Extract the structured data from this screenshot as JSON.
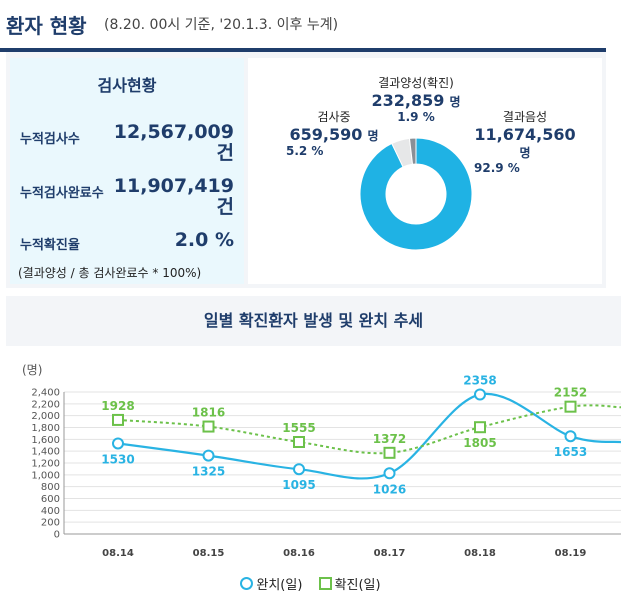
{
  "header": {
    "title": "환자 현황",
    "subtitle": "(8.20. 00시 기준, '20.1.3. 이후 누계)"
  },
  "stats": {
    "title": "검사현황",
    "rows": [
      {
        "label": "누적검사수",
        "value": "12,567,009 건"
      },
      {
        "label": "누적검사완료수",
        "value": "11,907,419 건"
      },
      {
        "label": "누적확진율",
        "value": "2.0 %"
      }
    ],
    "note": "(결과양성 / 총 검사완료수 * 100%)"
  },
  "pie": {
    "positive": {
      "name": "결과양성(확진)",
      "value": "232,859",
      "unit": "명",
      "pct": "1.9 %"
    },
    "testing": {
      "name": "검사중",
      "value": "659,590",
      "unit": "명",
      "pct": "5.2 %"
    },
    "negative": {
      "name": "결과음성",
      "value": "11,674,560",
      "unit": "명",
      "pct": "92.9 %"
    },
    "colors": {
      "negative": "#1fb2e4",
      "testing": "#e6e7e8",
      "positive": "#8a8f96"
    }
  },
  "chart_data": {
    "type": "line",
    "title": "일별 확진환자 발생 및 완치 추세",
    "ylabel": "(명)",
    "ylim": [
      0,
      2400
    ],
    "yticks": [
      0,
      200,
      400,
      600,
      800,
      1000,
      1200,
      1400,
      1600,
      1800,
      2000,
      2200,
      2400
    ],
    "categories": [
      "08.14",
      "08.15",
      "08.16",
      "08.17",
      "08.18",
      "08.19"
    ],
    "series": [
      {
        "name": "완치(일)",
        "color": "#29b3e3",
        "values": [
          1530,
          1325,
          1095,
          1026,
          2358,
          1653
        ]
      },
      {
        "name": "확진(일)",
        "color": "#6cc14a",
        "values": [
          1928,
          1816,
          1555,
          1372,
          1805,
          2152
        ]
      }
    ],
    "grid": true,
    "legend": "bottom"
  }
}
